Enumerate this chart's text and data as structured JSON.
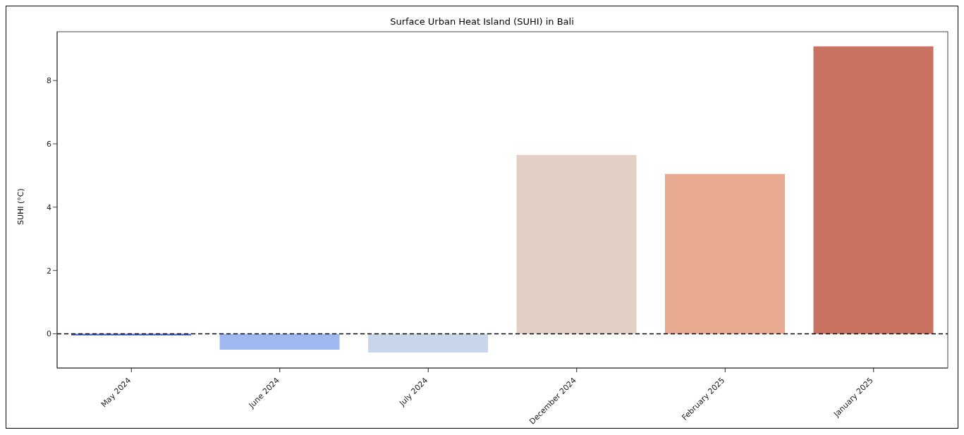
{
  "chart_data": {
    "type": "bar",
    "title": "Surface Urban Heat Island (SUHI) in Bali",
    "ylabel": "SUHI (°C)",
    "categories": [
      "May 2024",
      "June 2024",
      "July 2024",
      "December 2024",
      "February 2025",
      "January 2025"
    ],
    "values": [
      -0.05,
      -0.5,
      -0.59,
      5.65,
      5.05,
      9.08
    ],
    "colors": [
      "#4a66cc",
      "#9fb8f0",
      "#c9d5e8",
      "#e3d0c5",
      "#e8a991",
      "#c97262"
    ],
    "ylim": [
      -1.08,
      9.54
    ],
    "yticks": [
      0,
      2,
      4,
      6,
      8
    ],
    "grid": false,
    "ref_lines": [
      {
        "axis": "y",
        "value": 0,
        "color": "#000000",
        "line_style": "dashed"
      }
    ]
  }
}
